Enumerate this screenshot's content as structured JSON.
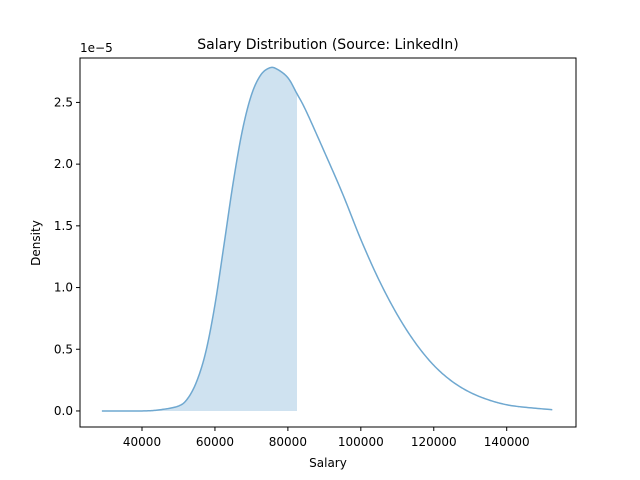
{
  "chart_data": {
    "type": "area",
    "title": "Salary Distribution (Source: LinkedIn)",
    "xlabel": "Salary",
    "ylabel": "Density",
    "y_offset_label": "1e−5",
    "xlim": [
      23000,
      159000
    ],
    "ylim": [
      -0.13,
      2.86
    ],
    "x_ticks": [
      40000,
      60000,
      80000,
      100000,
      120000,
      140000
    ],
    "x_tick_labels": [
      "40000",
      "60000",
      "80000",
      "100000",
      "120000",
      "140000"
    ],
    "y_ticks": [
      0.0,
      0.5,
      1.0,
      1.5,
      2.0,
      2.5
    ],
    "y_tick_labels": [
      "0.0",
      "0.5",
      "1.0",
      "1.5",
      "2.0",
      "2.5"
    ],
    "grid": false,
    "line_color": "#6fa8d0",
    "fill_color": "#cfe2f0",
    "shaded_region_end": 82500,
    "series": [
      {
        "x": [
          29000,
          40000,
          45000,
          50000,
          52500,
          55000,
          57500,
          60000,
          62500,
          65000,
          67500,
          70000,
          72500,
          75000,
          77000,
          80000,
          82500,
          85000,
          90000,
          95000,
          100000,
          105000,
          110000,
          115000,
          120000,
          125000,
          130000,
          135000,
          140000,
          145000,
          152500
        ],
        "y": [
          0.0,
          0.0,
          0.01,
          0.04,
          0.1,
          0.24,
          0.48,
          0.86,
          1.35,
          1.85,
          2.27,
          2.56,
          2.72,
          2.78,
          2.77,
          2.7,
          2.57,
          2.43,
          2.1,
          1.76,
          1.39,
          1.06,
          0.78,
          0.55,
          0.37,
          0.24,
          0.15,
          0.09,
          0.05,
          0.03,
          0.01
        ]
      }
    ]
  }
}
